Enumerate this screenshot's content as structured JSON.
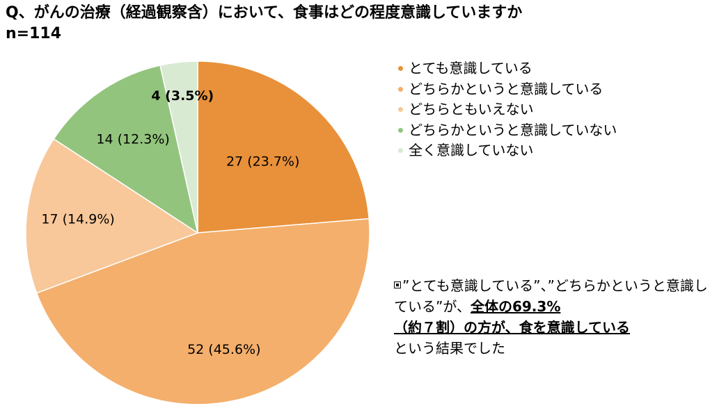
{
  "title": "Q、がんの治療（経過観察含）において、食事はどの程度意識していますか",
  "sample_size_label": "n=114",
  "chart_data": {
    "type": "pie",
    "total": 114,
    "slices": [
      {
        "name": "とても意識している",
        "value": 27,
        "label": "27 (23.7%)",
        "color": "#E8913A"
      },
      {
        "name": "どちらかというと意識している",
        "value": 52,
        "label": "52 (45.6%)",
        "color": "#F4AF6C"
      },
      {
        "name": "どちらともいえない",
        "value": 17,
        "label": "17 (14.9%)",
        "color": "#F8C89A"
      },
      {
        "name": "どちらかというと意識していない",
        "value": 14,
        "label": "14 (12.3%)",
        "color": "#93C47D"
      },
      {
        "name": "全く意識していない",
        "value": 4,
        "label": "4 (3.5%)",
        "color": "#D9EAD3"
      }
    ],
    "legend_position": "right"
  },
  "note": {
    "lead": "”とても意識している”、”どちらかというと意識している”が、",
    "emphasis_1": "全体の69.3%",
    "emphasis_2": "（約７割）の方が、食を意識している",
    "tail": "という結果でした"
  }
}
